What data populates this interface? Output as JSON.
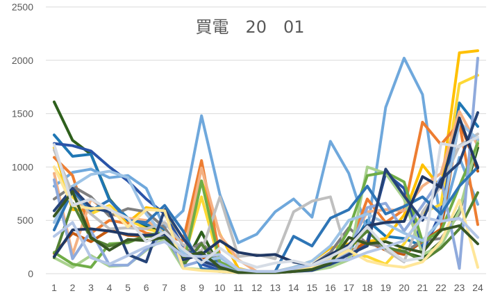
{
  "chart_data": {
    "type": "line",
    "title": "買電　20　01",
    "xlabel": "",
    "ylabel": "",
    "x": [
      1,
      2,
      3,
      4,
      5,
      6,
      7,
      8,
      9,
      10,
      11,
      12,
      13,
      14,
      15,
      16,
      17,
      18,
      19,
      20,
      21,
      22,
      23,
      24
    ],
    "x_tick_labels": [
      "1",
      "2",
      "3",
      "4",
      "5",
      "6",
      "7",
      "8",
      "9",
      "10",
      "11",
      "12",
      "13",
      "14",
      "15",
      "16",
      "17",
      "18",
      "19",
      "20",
      "21",
      "22",
      "23",
      "24"
    ],
    "ylim": [
      0,
      2500
    ],
    "y_ticks": [
      0,
      500,
      1000,
      1500,
      2000,
      2500
    ],
    "y_tick_labels": [
      "0",
      "500",
      "1000",
      "1500",
      "2000",
      "2500"
    ],
    "grid": true,
    "legend": "none",
    "series": [
      {
        "color": "#2e5f1c",
        "values": [
          1610,
          1250,
          1120,
          700,
          500,
          450,
          400,
          60,
          390,
          60,
          10,
          10,
          20,
          50,
          80,
          130,
          200,
          300,
          250,
          200,
          150,
          300,
          600,
          1180
        ]
      },
      {
        "color": "#1f77b4",
        "values": [
          1300,
          1100,
          1120,
          690,
          520,
          460,
          420,
          110,
          280,
          80,
          10,
          10,
          20,
          40,
          60,
          120,
          200,
          500,
          350,
          330,
          260,
          520,
          1600,
          1380
        ]
      },
      {
        "color": "#2a54a8",
        "values": [
          1220,
          1200,
          1150,
          1000,
          870,
          700,
          560,
          260,
          90,
          30,
          10,
          10,
          20,
          30,
          40,
          80,
          140,
          300,
          940,
          800,
          200,
          580,
          1430,
          1000
        ]
      },
      {
        "color": "#6fa8dc",
        "values": [
          820,
          950,
          980,
          900,
          920,
          800,
          430,
          590,
          1480,
          740,
          290,
          370,
          580,
          700,
          530,
          1240,
          940,
          400,
          1560,
          2020,
          1680,
          460,
          1090,
          650
        ]
      },
      {
        "color": "#ffc000",
        "values": [
          1180,
          600,
          590,
          620,
          480,
          620,
          590,
          330,
          870,
          370,
          50,
          10,
          20,
          60,
          120,
          240,
          280,
          300,
          330,
          550,
          1020,
          800,
          2070,
          2090
        ]
      },
      {
        "color": "#fdd835",
        "values": [
          1000,
          720,
          560,
          640,
          510,
          420,
          380,
          120,
          720,
          90,
          10,
          10,
          10,
          30,
          70,
          150,
          180,
          160,
          90,
          280,
          570,
          650,
          1780,
          1860
        ]
      },
      {
        "color": "#ed7d31",
        "values": [
          1090,
          920,
          380,
          500,
          470,
          380,
          350,
          310,
          1060,
          160,
          30,
          10,
          10,
          30,
          60,
          150,
          230,
          700,
          480,
          600,
          1420,
          1210,
          1410,
          460
        ]
      },
      {
        "color": "#f4b183",
        "values": [
          940,
          180,
          700,
          560,
          520,
          500,
          380,
          160,
          990,
          360,
          130,
          20,
          20,
          40,
          70,
          180,
          260,
          580,
          600,
          590,
          820,
          940,
          1520,
          1200
        ]
      },
      {
        "color": "#c55a11",
        "values": [
          190,
          380,
          300,
          410,
          360,
          350,
          360,
          200,
          160,
          50,
          20,
          10,
          20,
          30,
          50,
          120,
          200,
          300,
          220,
          180,
          300,
          420,
          1440,
          960
        ]
      },
      {
        "color": "#7f7f7f",
        "values": [
          700,
          820,
          720,
          540,
          610,
          580,
          430,
          190,
          290,
          110,
          30,
          10,
          20,
          40,
          80,
          200,
          430,
          280,
          250,
          200,
          310,
          330,
          560,
          1250
        ]
      },
      {
        "color": "#bfbfbf",
        "values": [
          1160,
          750,
          560,
          420,
          430,
          420,
          480,
          270,
          210,
          720,
          160,
          180,
          140,
          580,
          680,
          720,
          130,
          440,
          220,
          110,
          580,
          820,
          1200,
          1310
        ]
      },
      {
        "color": "#a9d18e",
        "values": [
          150,
          60,
          170,
          70,
          80,
          220,
          330,
          50,
          40,
          20,
          10,
          10,
          10,
          20,
          30,
          60,
          130,
          1000,
          940,
          700,
          180,
          260,
          590,
          1240
        ]
      },
      {
        "color": "#70ad47",
        "values": [
          200,
          90,
          60,
          280,
          290,
          360,
          390,
          70,
          870,
          110,
          20,
          10,
          10,
          30,
          40,
          120,
          410,
          920,
          950,
          860,
          300,
          400,
          820,
          1220
        ]
      },
      {
        "color": "#548235",
        "values": [
          150,
          660,
          330,
          260,
          300,
          350,
          360,
          80,
          280,
          40,
          10,
          10,
          10,
          20,
          50,
          160,
          240,
          400,
          240,
          210,
          120,
          240,
          420,
          760
        ]
      },
      {
        "color": "#8faadc",
        "values": [
          880,
          140,
          400,
          80,
          80,
          230,
          380,
          70,
          120,
          90,
          10,
          10,
          10,
          30,
          60,
          110,
          210,
          620,
          660,
          400,
          640,
          900,
          50,
          2020
        ]
      },
      {
        "color": "#9dc3e6",
        "values": [
          480,
          820,
          930,
          960,
          900,
          560,
          350,
          200,
          120,
          150,
          40,
          20,
          20,
          60,
          120,
          260,
          500,
          560,
          470,
          380,
          310,
          500,
          1420,
          1260
        ]
      },
      {
        "color": "#2e75b6",
        "values": [
          410,
          780,
          590,
          690,
          500,
          480,
          640,
          400,
          50,
          20,
          10,
          10,
          20,
          350,
          260,
          520,
          600,
          820,
          560,
          630,
          720,
          560,
          820,
          1000
        ]
      },
      {
        "color": "#264478",
        "values": [
          590,
          800,
          620,
          580,
          180,
          110,
          600,
          330,
          120,
          60,
          10,
          10,
          10,
          20,
          30,
          90,
          180,
          260,
          980,
          730,
          500,
          880,
          1040,
          1510
        ]
      },
      {
        "color": "#203864",
        "values": [
          160,
          410,
          420,
          400,
          370,
          360,
          370,
          130,
          180,
          310,
          200,
          170,
          180,
          110,
          80,
          180,
          270,
          450,
          480,
          490,
          910,
          810,
          1460,
          990
        ]
      },
      {
        "color": "#ffe699",
        "values": [
          1000,
          640,
          610,
          620,
          440,
          600,
          590,
          50,
          30,
          20,
          10,
          10,
          10,
          20,
          60,
          130,
          220,
          120,
          80,
          60,
          110,
          300,
          690,
          60
        ]
      },
      {
        "color": "#375623",
        "values": [
          540,
          770,
          340,
          220,
          320,
          310,
          340,
          160,
          200,
          60,
          10,
          10,
          10,
          20,
          40,
          100,
          340,
          280,
          300,
          240,
          200,
          410,
          450,
          280
        ]
      },
      {
        "color": "#b4c7e7",
        "values": [
          350,
          480,
          150,
          90,
          170,
          250,
          300,
          170,
          160,
          180,
          40,
          20,
          20,
          50,
          80,
          120,
          130,
          200,
          250,
          310,
          530,
          490,
          520,
          340
        ]
      },
      {
        "color": "#d6dce5",
        "values": [
          1210,
          640,
          700,
          600,
          520,
          300,
          390,
          230,
          100,
          240,
          120,
          60,
          100,
          120,
          80,
          160,
          250,
          440,
          250,
          120,
          150,
          1220,
          1190,
          1280
        ]
      }
    ]
  }
}
